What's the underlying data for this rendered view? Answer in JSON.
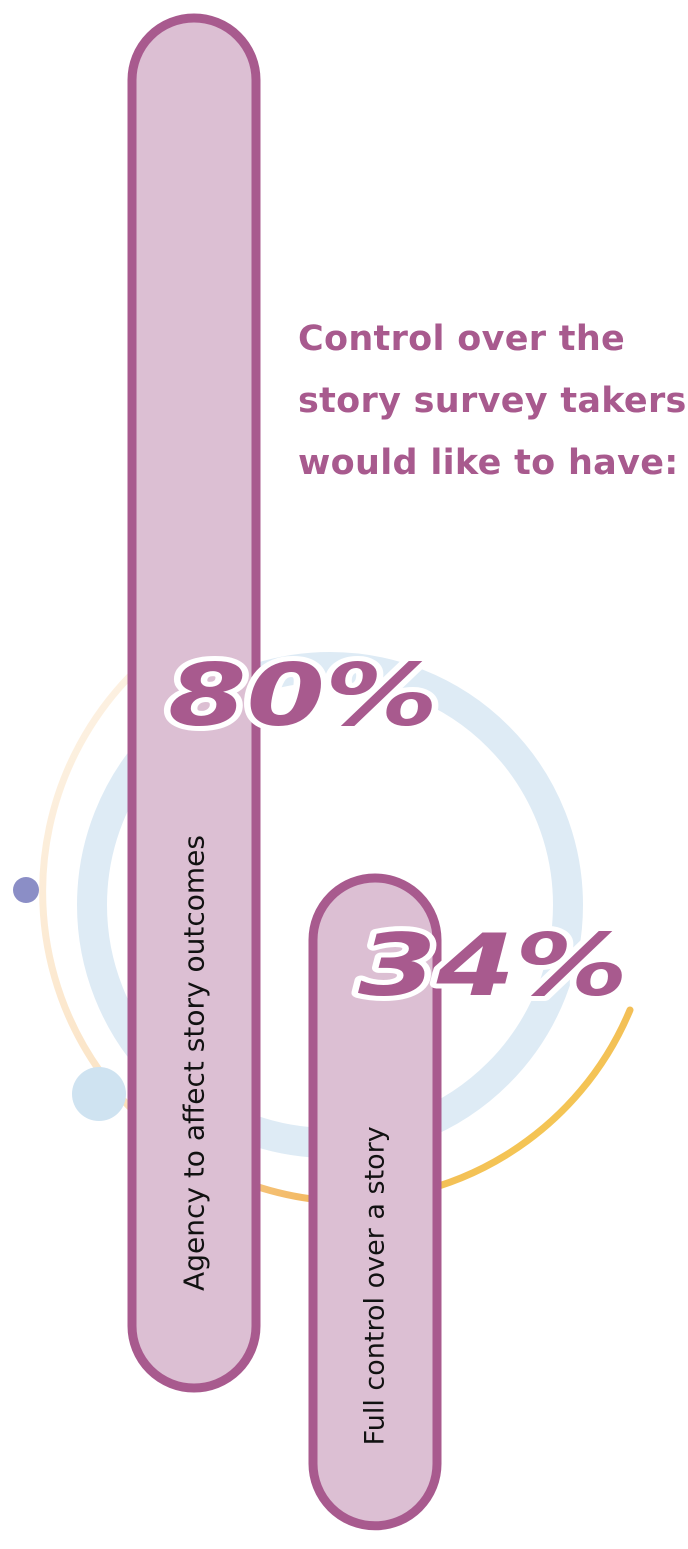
{
  "headline": {
    "lines": [
      "Control over the",
      "story survey takers",
      "would like to have:"
    ]
  },
  "chart_data": {
    "type": "bar",
    "orientation": "vertical",
    "categories": [
      "Agency to affect story outcomes",
      "Full control over a story"
    ],
    "series": [
      {
        "values": [
          80,
          34
        ]
      }
    ],
    "value_labels": [
      "80%",
      "34%"
    ],
    "unit": "%",
    "ylim": [
      0,
      100
    ],
    "grid": false,
    "legend": "none"
  },
  "colors": {
    "bar_fill": "#dcbfd3",
    "bar_stroke": "#a85a8e",
    "headline": "#a85a8e",
    "percent_text": "#a85a8e",
    "percent_outline": "#ffffff",
    "ring_light_blue": "#deebf5",
    "ring_outer_cream": "#fbeedd",
    "ring_outer_orange": "#f2b55a",
    "ring_outer_yellow": "#f6d94e",
    "dot_periwinkle": "#8b8ec6",
    "dot_light_blue": "#cfe3f1"
  },
  "decorations": {
    "rings": [
      "light-blue-ring",
      "gradient-outer-ring"
    ],
    "dots": [
      "periwinkle-dot",
      "light-blue-dot"
    ]
  }
}
